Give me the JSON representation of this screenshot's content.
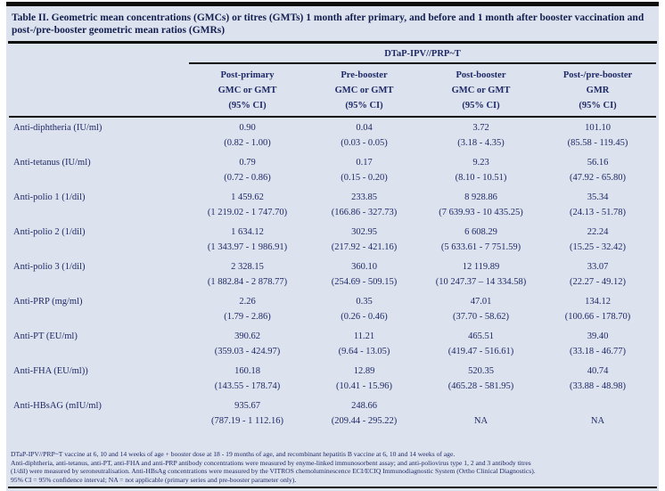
{
  "title": "Table II. Geometric mean concentrations (GMCs) or titres (GMTs) 1 month after primary, and before and 1 month after booster vaccination and post-/pre-booster geometric mean ratios (GMRs)",
  "table": {
    "spanner": "DTaP-IPV//PRP~T",
    "columns": [
      {
        "l1": "Post-primary",
        "l2": "GMC or GMT",
        "l3": "(95% CI)"
      },
      {
        "l1": "Pre-booster",
        "l2": "GMC or GMT",
        "l3": "(95% CI)"
      },
      {
        "l1": "Post-booster",
        "l2": "GMC or GMT",
        "l3": "(95% CI)"
      },
      {
        "l1": "Post-/pre-booster",
        "l2": "GMR",
        "l3": "(95% CI)"
      }
    ],
    "rows": [
      {
        "label": "Anti-diphtheria (IU/ml)",
        "cells": [
          {
            "v": "0.90",
            "ci": "(0.82 - 1.00)"
          },
          {
            "v": "0.04",
            "ci": "(0.03 - 0.05)"
          },
          {
            "v": "3.72",
            "ci": "(3.18 - 4.35)"
          },
          {
            "v": "101.10",
            "ci": "(85.58 - 119.45)"
          }
        ]
      },
      {
        "label": "Anti-tetanus  (IU/ml)",
        "cells": [
          {
            "v": "0.79",
            "ci": "(0.72 - 0.86)"
          },
          {
            "v": "0.17",
            "ci": "(0.15 - 0.20)"
          },
          {
            "v": "9.23",
            "ci": "(8.10 - 10.51)"
          },
          {
            "v": "56.16",
            "ci": "(47.92 - 65.80)"
          }
        ]
      },
      {
        "label": "Anti-polio 1 (1/dil)",
        "cells": [
          {
            "v": "1 459.62",
            "ci": "(1 219.02 - 1 747.70)"
          },
          {
            "v": "233.85",
            "ci": "(166.86 - 327.73)"
          },
          {
            "v": "8 928.86",
            "ci": "(7 639.93 - 10 435.25)"
          },
          {
            "v": "35.34",
            "ci": "(24.13 - 51.78)"
          }
        ]
      },
      {
        "label": "Anti-polio 2 (1/dil)",
        "cells": [
          {
            "v": "1 634.12",
            "ci": "(1 343.97 - 1 986.91)"
          },
          {
            "v": "302.95",
            "ci": "(217.92 - 421.16)"
          },
          {
            "v": "6 608.29",
            "ci": "(5 633.61 - 7 751.59)"
          },
          {
            "v": "22.24",
            "ci": "(15.25 - 32.42)"
          }
        ]
      },
      {
        "label": "Anti-polio 3 (1/dil)",
        "cells": [
          {
            "v": "2 328.15",
            "ci": "(1 882.84 - 2 878.77)"
          },
          {
            "v": "360.10",
            "ci": "(254.69 - 509.15)"
          },
          {
            "v": "12 119.89",
            "ci": "(10 247.37 – 14 334.58)"
          },
          {
            "v": "33.07",
            "ci": "(22.27 - 49.12)"
          }
        ]
      },
      {
        "label": "Anti-PRP (mg/ml)",
        "cells": [
          {
            "v": "2.26",
            "ci": "(1.79 - 2.86)"
          },
          {
            "v": "0.35",
            "ci": "(0.26 - 0.46)"
          },
          {
            "v": "47.01",
            "ci": "(37.70 - 58.62)"
          },
          {
            "v": "134.12",
            "ci": "(100.66 - 178.70)"
          }
        ]
      },
      {
        "label": "Anti-PT (EU/ml)",
        "cells": [
          {
            "v": "390.62",
            "ci": "(359.03 - 424.97)"
          },
          {
            "v": "11.21",
            "ci": "(9.64 - 13.05)"
          },
          {
            "v": "465.51",
            "ci": "(419.47 - 516.61)"
          },
          {
            "v": "39.40",
            "ci": "(33.18 - 46.77)"
          }
        ]
      },
      {
        "label": "Anti-FHA (EU/ml))",
        "cells": [
          {
            "v": "160.18",
            "ci": "(143.55 - 178.74)"
          },
          {
            "v": "12.89",
            "ci": "(10.41 - 15.96)"
          },
          {
            "v": "520.35",
            "ci": "(465.28 - 581.95)"
          },
          {
            "v": "40.74",
            "ci": "(33.88 - 48.98)"
          }
        ]
      },
      {
        "label": "Anti-HBsAG (mIU/ml)",
        "cells": [
          {
            "v": "935.67",
            "ci": "(787.19 - 1 112.16)"
          },
          {
            "v": "248.66",
            "ci": "(209.44 - 295.22)"
          },
          {
            "v": "",
            "ci": "NA"
          },
          {
            "v": "",
            "ci": "NA"
          }
        ]
      }
    ]
  },
  "footnotes": [
    "DTaP-IPV//PRP~T vaccine at 6, 10 and 14 weeks of age + booster dose at 18 - 19 months of age, and  recombinant hepatitis B vaccine at 6, 10 and 14 weeks of age.",
    "Anti-diphtheria, anti-tetanus, anti-PT, anti-FHA and anti-PRP antibody concentrations were measured by enyme-linked immunosorbent assay; and anti-poliovirus type 1, 2 and 3 antibody titres",
    "(1/dil) were measured by seroneutralisation. Anti-HBsAg concentrations were measured by the VITROS chemoluminescence ECI/ECIQ Immunodiagnostic System (Ortho Clinical Diagnostics).",
    "95% CI = 95% confidence interval; NA = not applicable (primary series and pre-booster parameter only)."
  ],
  "colors": {
    "panel_background": "#dde2ef",
    "text": "#1e2a66",
    "title_text": "#13204f",
    "rule": "#0d0d0d"
  }
}
